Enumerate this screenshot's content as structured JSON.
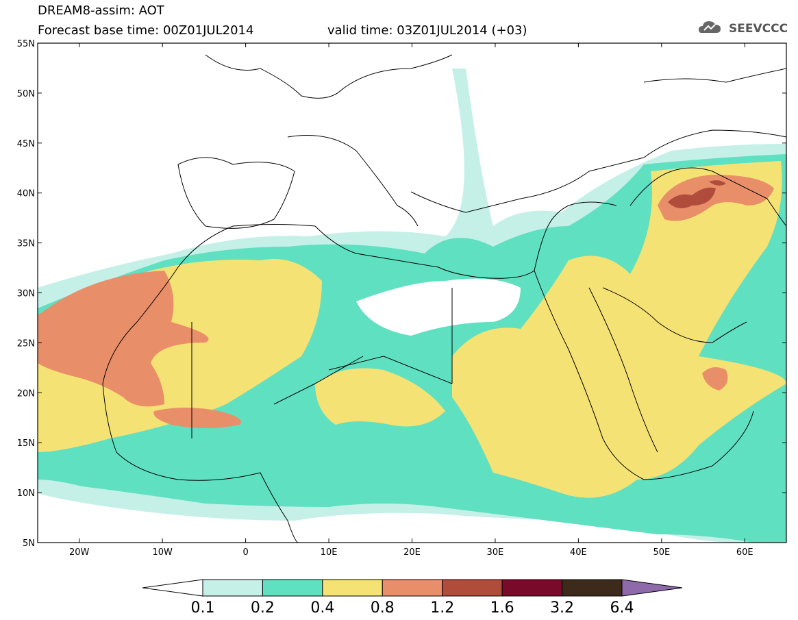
{
  "header": {
    "line1": "DREAM8-assim: AOT",
    "line2": "Forecast base time: 00Z01JUL2014",
    "valid_time": "valid time: 03Z01JUL2014 (+03)",
    "logo_text": "SEEVCCC"
  },
  "map": {
    "lon_range": [
      -25,
      65
    ],
    "lat_range": [
      5,
      55
    ],
    "lat_ticks": [
      {
        "lat": 55,
        "label": "55N"
      },
      {
        "lat": 50,
        "label": "50N"
      },
      {
        "lat": 45,
        "label": "45N"
      },
      {
        "lat": 40,
        "label": "40N"
      },
      {
        "lat": 35,
        "label": "35N"
      },
      {
        "lat": 30,
        "label": "30N"
      },
      {
        "lat": 25,
        "label": "25N"
      },
      {
        "lat": 20,
        "label": "20N"
      },
      {
        "lat": 15,
        "label": "15N"
      },
      {
        "lat": 10,
        "label": "10N"
      },
      {
        "lat": 5,
        "label": "5N"
      }
    ],
    "lon_ticks": [
      {
        "lon": -20,
        "label": "20W"
      },
      {
        "lon": -10,
        "label": "10W"
      },
      {
        "lon": 0,
        "label": "0"
      },
      {
        "lon": 10,
        "label": "10E"
      },
      {
        "lon": 20,
        "label": "20E"
      },
      {
        "lon": 30,
        "label": "30E"
      },
      {
        "lon": 40,
        "label": "40E"
      },
      {
        "lon": 50,
        "label": "50E"
      },
      {
        "lon": 60,
        "label": "60E"
      }
    ]
  },
  "legend": {
    "bins": [
      {
        "color": "#ffffff"
      },
      {
        "color": "#c4f0e8"
      },
      {
        "color": "#5fe0c0"
      },
      {
        "color": "#f5e274"
      },
      {
        "color": "#e88e68"
      },
      {
        "color": "#b04c3c"
      },
      {
        "color": "#7a0a2a"
      },
      {
        "color": "#3e2a1a"
      },
      {
        "color": "#8f6aab"
      }
    ],
    "labels": [
      "0.1",
      "0.2",
      "0.4",
      "0.8",
      "1.2",
      "1.6",
      "3.2",
      "6.4"
    ]
  }
}
